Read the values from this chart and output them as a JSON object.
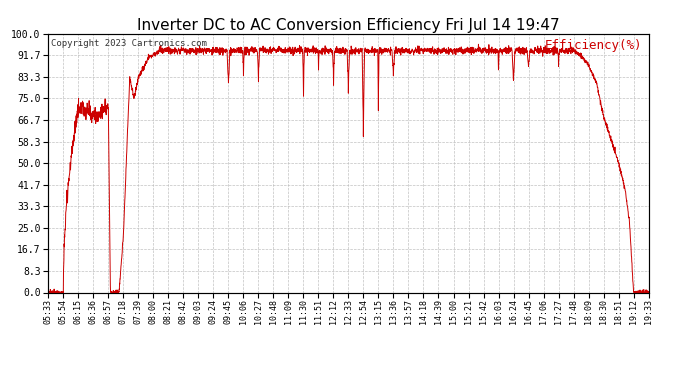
{
  "title": "Inverter DC to AC Conversion Efficiency Fri Jul 14 19:47",
  "copyright": "Copyright 2023 Cartronics.com",
  "ylabel": "Efficiency(%)",
  "ylabel_color": "#cc0000",
  "title_fontsize": 11,
  "line_color": "#cc0000",
  "bg_color": "#ffffff",
  "grid_color": "#bbbbbb",
  "ytick_labels": [
    "0.0",
    "8.3",
    "16.7",
    "25.0",
    "33.3",
    "41.7",
    "50.0",
    "58.3",
    "66.7",
    "75.0",
    "83.3",
    "91.7",
    "100.0"
  ],
  "ytick_values": [
    0.0,
    8.3,
    16.7,
    25.0,
    33.3,
    41.7,
    50.0,
    58.3,
    66.7,
    75.0,
    83.3,
    91.7,
    100.0
  ],
  "xtick_labels": [
    "05:33",
    "05:54",
    "06:15",
    "06:36",
    "06:57",
    "07:18",
    "07:39",
    "08:00",
    "08:21",
    "08:42",
    "09:03",
    "09:24",
    "09:45",
    "10:06",
    "10:27",
    "10:48",
    "11:09",
    "11:30",
    "11:51",
    "12:12",
    "12:33",
    "12:54",
    "13:15",
    "13:36",
    "13:57",
    "14:18",
    "14:39",
    "15:00",
    "15:21",
    "15:42",
    "16:03",
    "16:24",
    "16:45",
    "17:06",
    "17:27",
    "17:48",
    "18:09",
    "18:30",
    "18:51",
    "19:12",
    "19:33"
  ],
  "ylim": [
    0.0,
    100.0
  ],
  "linewidth": 0.7,
  "plateau_level": 93.5,
  "dip_times": [
    "09:45",
    "10:06",
    "10:27",
    "11:30",
    "11:51",
    "12:12",
    "12:33",
    "12:54",
    "13:15",
    "13:36",
    "16:03",
    "16:24",
    "16:45",
    "17:27"
  ],
  "dip_depths": [
    78,
    83,
    80,
    75,
    85,
    79,
    76,
    60,
    65,
    82,
    85,
    80,
    86,
    87
  ]
}
